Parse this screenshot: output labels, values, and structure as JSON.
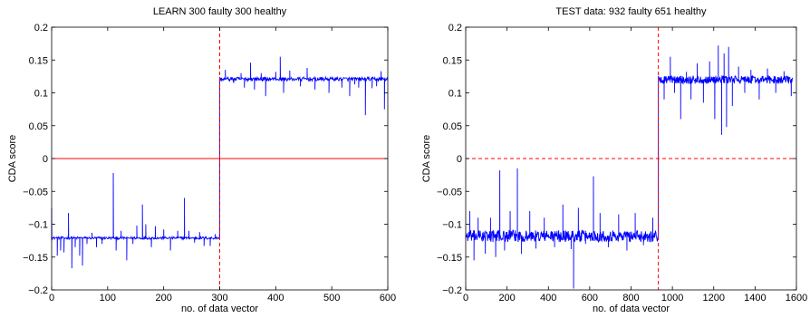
{
  "chart_data": [
    {
      "type": "line",
      "title": "LEARN 300 faulty 300 healthy",
      "xlabel": "no. of data vector",
      "ylabel": "CDA score",
      "xlim": [
        0,
        600
      ],
      "ylim": [
        -0.2,
        0.2
      ],
      "xticks": [
        0,
        100,
        200,
        300,
        400,
        500,
        600
      ],
      "yticks": [
        -0.2,
        -0.15,
        -0.1,
        -0.05,
        0,
        0.05,
        0.1,
        0.15,
        0.2
      ],
      "ytick_labels": [
        "−0.2",
        "−0.15",
        "−0.1",
        "−0.05",
        "0",
        "0.05",
        "0.1",
        "0.15",
        "0.2"
      ],
      "grid": false,
      "boundary_x": 300,
      "threshold_y": 0,
      "threshold_style": "solid",
      "colors": {
        "series": "#0000ff",
        "reference": "#ff0000"
      },
      "series": [
        {
          "values_description_omitted": true,
          "segments": [
            {
              "x_start": 0,
              "x_end": 300,
              "baseline": -0.121,
              "noise": 0.002
            },
            {
              "x_start": 300,
              "x_end": 600,
              "baseline": 0.121,
              "noise": 0.003
            }
          ],
          "spikes": [
            {
              "x": 0,
              "y": -0.075
            },
            {
              "x": 10,
              "y": -0.148
            },
            {
              "x": 16,
              "y": -0.14
            },
            {
              "x": 22,
              "y": -0.143
            },
            {
              "x": 30,
              "y": -0.083
            },
            {
              "x": 36,
              "y": -0.167
            },
            {
              "x": 42,
              "y": -0.135
            },
            {
              "x": 50,
              "y": -0.148
            },
            {
              "x": 55,
              "y": -0.163
            },
            {
              "x": 63,
              "y": -0.13
            },
            {
              "x": 72,
              "y": -0.113
            },
            {
              "x": 80,
              "y": -0.135
            },
            {
              "x": 90,
              "y": -0.13
            },
            {
              "x": 110,
              "y": -0.022
            },
            {
              "x": 115,
              "y": -0.14
            },
            {
              "x": 124,
              "y": -0.11
            },
            {
              "x": 134,
              "y": -0.155
            },
            {
              "x": 145,
              "y": -0.13
            },
            {
              "x": 152,
              "y": -0.102
            },
            {
              "x": 162,
              "y": -0.07
            },
            {
              "x": 168,
              "y": -0.1
            },
            {
              "x": 178,
              "y": -0.135
            },
            {
              "x": 185,
              "y": -0.103
            },
            {
              "x": 200,
              "y": -0.108
            },
            {
              "x": 212,
              "y": -0.14
            },
            {
              "x": 225,
              "y": -0.11
            },
            {
              "x": 237,
              "y": -0.06
            },
            {
              "x": 245,
              "y": -0.11
            },
            {
              "x": 255,
              "y": -0.128
            },
            {
              "x": 264,
              "y": -0.112
            },
            {
              "x": 272,
              "y": -0.133
            },
            {
              "x": 283,
              "y": -0.133
            },
            {
              "x": 292,
              "y": -0.115
            },
            {
              "x": 310,
              "y": 0.135
            },
            {
              "x": 325,
              "y": 0.115
            },
            {
              "x": 338,
              "y": 0.13
            },
            {
              "x": 344,
              "y": 0.108
            },
            {
              "x": 355,
              "y": 0.146
            },
            {
              "x": 362,
              "y": 0.105
            },
            {
              "x": 374,
              "y": 0.13
            },
            {
              "x": 382,
              "y": 0.095
            },
            {
              "x": 400,
              "y": 0.132
            },
            {
              "x": 408,
              "y": 0.155
            },
            {
              "x": 414,
              "y": 0.1
            },
            {
              "x": 425,
              "y": 0.134
            },
            {
              "x": 444,
              "y": 0.11
            },
            {
              "x": 456,
              "y": 0.138
            },
            {
              "x": 470,
              "y": 0.105
            },
            {
              "x": 482,
              "y": 0.118
            },
            {
              "x": 495,
              "y": 0.1
            },
            {
              "x": 505,
              "y": 0.118
            },
            {
              "x": 518,
              "y": 0.108
            },
            {
              "x": 532,
              "y": 0.095
            },
            {
              "x": 541,
              "y": 0.113
            },
            {
              "x": 548,
              "y": 0.108
            },
            {
              "x": 560,
              "y": 0.066
            },
            {
              "x": 572,
              "y": 0.107
            },
            {
              "x": 580,
              "y": 0.11
            },
            {
              "x": 588,
              "y": 0.133
            },
            {
              "x": 594,
              "y": 0.075
            }
          ]
        }
      ]
    },
    {
      "type": "line",
      "title": "TEST data: 932 faulty 651 healthy",
      "xlabel": "no. of data vector",
      "ylabel": "CDA score",
      "xlim": [
        0,
        1600
      ],
      "ylim": [
        -0.2,
        0.2
      ],
      "xticks": [
        0,
        200,
        400,
        600,
        800,
        1000,
        1200,
        1400,
        1600
      ],
      "yticks": [
        -0.2,
        -0.15,
        -0.1,
        -0.05,
        0,
        0.05,
        0.1,
        0.15,
        0.2
      ],
      "ytick_labels": [
        "−0.2",
        "−0.15",
        "−0.1",
        "−0.05",
        "0",
        "0.05",
        "0.1",
        "0.15",
        "0.2"
      ],
      "grid": false,
      "boundary_x": 932,
      "threshold_y": 0,
      "threshold_style": "dashed",
      "colors": {
        "series": "#0000ff",
        "reference": "#ff0000"
      },
      "series": [
        {
          "segments": [
            {
              "x_start": 0,
              "x_end": 932,
              "baseline": -0.118,
              "noise": 0.009
            },
            {
              "x_start": 932,
              "x_end": 1583,
              "baseline": 0.12,
              "noise": 0.006
            }
          ],
          "spikes": [
            {
              "x": 20,
              "y": -0.08
            },
            {
              "x": 40,
              "y": -0.155
            },
            {
              "x": 60,
              "y": -0.09
            },
            {
              "x": 95,
              "y": -0.145
            },
            {
              "x": 120,
              "y": -0.09
            },
            {
              "x": 145,
              "y": -0.15
            },
            {
              "x": 165,
              "y": -0.018
            },
            {
              "x": 188,
              "y": -0.14
            },
            {
              "x": 215,
              "y": -0.08
            },
            {
              "x": 250,
              "y": -0.015
            },
            {
              "x": 270,
              "y": -0.145
            },
            {
              "x": 310,
              "y": -0.08
            },
            {
              "x": 340,
              "y": -0.137
            },
            {
              "x": 380,
              "y": -0.09
            },
            {
              "x": 430,
              "y": -0.135
            },
            {
              "x": 470,
              "y": -0.07
            },
            {
              "x": 510,
              "y": -0.138
            },
            {
              "x": 522,
              "y": -0.198
            },
            {
              "x": 545,
              "y": -0.075
            },
            {
              "x": 580,
              "y": -0.13
            },
            {
              "x": 618,
              "y": -0.027
            },
            {
              "x": 650,
              "y": -0.083
            },
            {
              "x": 690,
              "y": -0.135
            },
            {
              "x": 740,
              "y": -0.085
            },
            {
              "x": 780,
              "y": -0.14
            },
            {
              "x": 820,
              "y": -0.083
            },
            {
              "x": 860,
              "y": -0.132
            },
            {
              "x": 905,
              "y": -0.09
            },
            {
              "x": 960,
              "y": 0.09
            },
            {
              "x": 990,
              "y": 0.155
            },
            {
              "x": 1010,
              "y": 0.1
            },
            {
              "x": 1040,
              "y": 0.06
            },
            {
              "x": 1068,
              "y": 0.132
            },
            {
              "x": 1090,
              "y": 0.09
            },
            {
              "x": 1120,
              "y": 0.145
            },
            {
              "x": 1150,
              "y": 0.085
            },
            {
              "x": 1180,
              "y": 0.148
            },
            {
              "x": 1205,
              "y": 0.06
            },
            {
              "x": 1222,
              "y": 0.172
            },
            {
              "x": 1238,
              "y": 0.036
            },
            {
              "x": 1250,
              "y": 0.16
            },
            {
              "x": 1262,
              "y": 0.048
            },
            {
              "x": 1272,
              "y": 0.17
            },
            {
              "x": 1290,
              "y": 0.08
            },
            {
              "x": 1320,
              "y": 0.14
            },
            {
              "x": 1350,
              "y": 0.1
            },
            {
              "x": 1380,
              "y": 0.135
            },
            {
              "x": 1420,
              "y": 0.09
            },
            {
              "x": 1460,
              "y": 0.137
            },
            {
              "x": 1500,
              "y": 0.1
            },
            {
              "x": 1540,
              "y": 0.133
            },
            {
              "x": 1575,
              "y": 0.095
            }
          ]
        }
      ]
    }
  ]
}
